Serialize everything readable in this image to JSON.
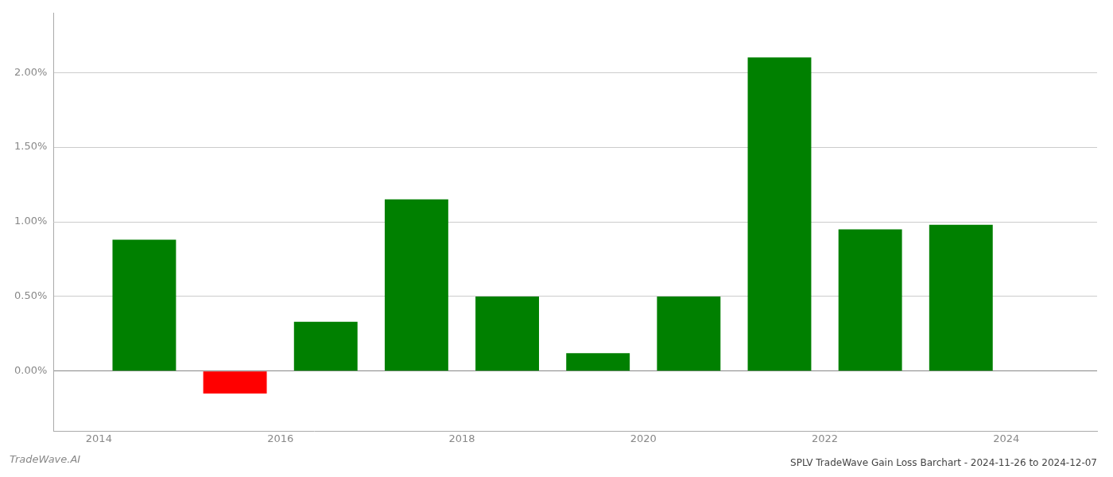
{
  "chart_data": {
    "type": "bar",
    "title": "SPLV TradeWave Gain Loss Barchart - 2024-11-26 to 2024-12-07",
    "annotations": [
      {
        "text": "TradeWave.AI"
      }
    ],
    "x": [
      2014.5,
      2015.5,
      2016.5,
      2017.5,
      2018.5,
      2019.5,
      2020.5,
      2021.5,
      2022.5,
      2023.5
    ],
    "values": [
      0.0088,
      -0.0015,
      0.0033,
      0.0115,
      0.005,
      0.0012,
      0.005,
      0.021,
      0.0095,
      0.0098
    ],
    "colors": [
      "#008000",
      "#ff0000",
      "#008000",
      "#008000",
      "#008000",
      "#008000",
      "#008000",
      "#008000",
      "#008000",
      "#008000"
    ],
    "xlim": [
      2013.5,
      2025.0
    ],
    "ylim": [
      -0.004,
      0.024
    ],
    "xticks": [
      2014,
      2016,
      2018,
      2020,
      2022,
      2024
    ],
    "yticks": [
      {
        "value": 0.0,
        "label": "0.00%"
      },
      {
        "value": 0.005,
        "label": "0.50%"
      },
      {
        "value": 0.01,
        "label": "1.00%"
      },
      {
        "value": 0.015,
        "label": "1.50%"
      },
      {
        "value": 0.02,
        "label": "2.00%"
      }
    ],
    "grid": "y"
  }
}
